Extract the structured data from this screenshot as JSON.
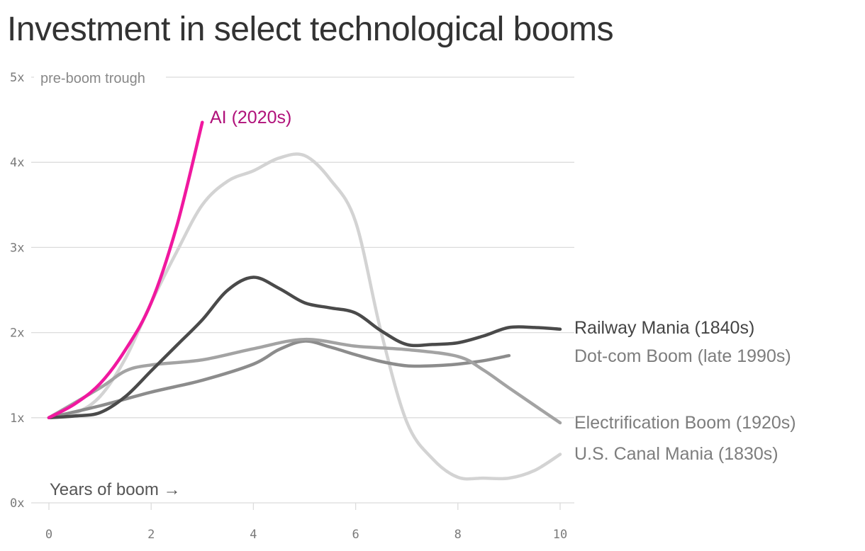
{
  "chart_data": {
    "type": "line",
    "title": "Investment in select technological booms",
    "xlabel": "Years of boom →",
    "ylabel": "",
    "ylabel_note": "pre-boom trough",
    "xlim": [
      0,
      10
    ],
    "ylim": [
      0,
      5
    ],
    "x_ticks": [
      0,
      2,
      4,
      6,
      8,
      10
    ],
    "y_ticks": [
      0,
      1,
      2,
      3,
      4,
      5
    ],
    "y_tick_labels": [
      "0x",
      "1x",
      "2x",
      "3x",
      "4x",
      "5x"
    ],
    "grid": true,
    "legend": "direct labels at line ends",
    "series": [
      {
        "name": "U.S. Canal Mania (1830s)",
        "color": "#d3d3d3",
        "points": [
          [
            0,
            1
          ],
          [
            0.5,
            1.05
          ],
          [
            1,
            1.25
          ],
          [
            1.5,
            1.7
          ],
          [
            2,
            2.35
          ],
          [
            2.5,
            2.95
          ],
          [
            3,
            3.5
          ],
          [
            3.5,
            3.78
          ],
          [
            4,
            3.9
          ],
          [
            4.5,
            4.05
          ],
          [
            5,
            4.08
          ],
          [
            5.5,
            3.8
          ],
          [
            6,
            3.3
          ],
          [
            6.5,
            2.0
          ],
          [
            7,
            0.95
          ],
          [
            7.5,
            0.52
          ],
          [
            8,
            0.3
          ],
          [
            8.5,
            0.29
          ],
          [
            9,
            0.29
          ],
          [
            9.5,
            0.38
          ],
          [
            10,
            0.57
          ]
        ]
      },
      {
        "name": "Electrification Boom (1920s)",
        "color": "#8c8c8c",
        "points": [
          [
            0,
            1
          ],
          [
            1,
            1.14
          ],
          [
            2,
            1.3
          ],
          [
            3,
            1.44
          ],
          [
            4,
            1.63
          ],
          [
            4.5,
            1.8
          ],
          [
            5,
            1.9
          ],
          [
            5.5,
            1.83
          ],
          [
            6,
            1.74
          ],
          [
            6.5,
            1.66
          ],
          [
            7,
            1.61
          ],
          [
            7.5,
            1.61
          ],
          [
            8,
            1.63
          ],
          [
            8.5,
            1.67
          ],
          [
            9,
            1.73
          ]
        ]
      },
      {
        "name": "Dot-com Boom (late 1990s)",
        "color": "#a3a3a3",
        "points": [
          [
            0,
            1
          ],
          [
            1,
            1.35
          ],
          [
            1.5,
            1.55
          ],
          [
            2,
            1.62
          ],
          [
            3,
            1.68
          ],
          [
            4,
            1.81
          ],
          [
            5,
            1.92
          ],
          [
            6,
            1.84
          ],
          [
            7,
            1.8
          ],
          [
            8,
            1.72
          ],
          [
            8.5,
            1.56
          ],
          [
            9,
            1.35
          ],
          [
            10,
            0.94
          ]
        ]
      },
      {
        "name": "Railway Mania (1840s)",
        "color": "#4a4a4a",
        "points": [
          [
            0,
            1
          ],
          [
            0.5,
            1.02
          ],
          [
            1,
            1.06
          ],
          [
            1.5,
            1.25
          ],
          [
            2,
            1.55
          ],
          [
            2.5,
            1.85
          ],
          [
            3,
            2.15
          ],
          [
            3.5,
            2.5
          ],
          [
            4,
            2.65
          ],
          [
            4.5,
            2.52
          ],
          [
            5,
            2.35
          ],
          [
            5.5,
            2.29
          ],
          [
            6,
            2.23
          ],
          [
            6.5,
            2.02
          ],
          [
            7,
            1.86
          ],
          [
            7.5,
            1.86
          ],
          [
            8,
            1.88
          ],
          [
            8.5,
            1.96
          ],
          [
            9,
            2.06
          ],
          [
            9.5,
            2.06
          ],
          [
            10,
            2.04
          ]
        ]
      },
      {
        "name": "AI (2020s)",
        "color": "#f0189f",
        "points": [
          [
            0,
            1
          ],
          [
            0.5,
            1.16
          ],
          [
            1,
            1.4
          ],
          [
            1.5,
            1.8
          ],
          [
            2,
            2.35
          ],
          [
            2.5,
            3.25
          ],
          [
            3,
            4.47
          ]
        ]
      }
    ]
  }
}
